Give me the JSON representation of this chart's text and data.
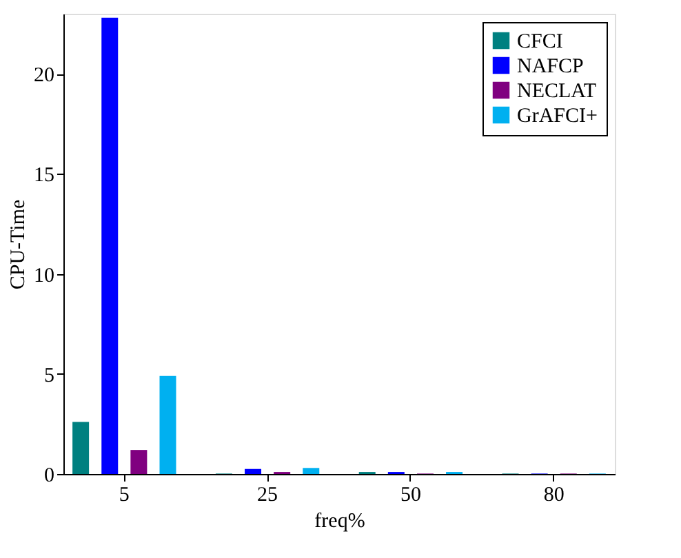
{
  "chart_data": {
    "type": "bar",
    "xlabel": "freq%",
    "ylabel": "CPU-Time",
    "categories": [
      "5",
      "25",
      "50",
      "80"
    ],
    "series": [
      {
        "name": "CFCI",
        "color": "#008080",
        "values": [
          2.6,
          0.02,
          0.1,
          0.02
        ]
      },
      {
        "name": "NAFCP",
        "color": "#0000ff",
        "values": [
          22.8,
          0.25,
          0.1,
          0.02
        ]
      },
      {
        "name": "NECLAT",
        "color": "#800080",
        "values": [
          1.2,
          0.1,
          0.02,
          0.02
        ]
      },
      {
        "name": "GrAFCI+",
        "color": "#00b0f0",
        "values": [
          4.9,
          0.3,
          0.1,
          0.02
        ]
      }
    ],
    "ylim": [
      0,
      23
    ],
    "yticks": [
      0,
      5,
      10,
      15,
      20
    ],
    "grid": false,
    "legend": "top right"
  }
}
